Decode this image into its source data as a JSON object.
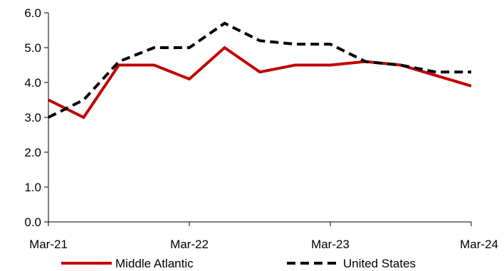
{
  "chart_data": {
    "type": "line",
    "title": "",
    "xlabel": "",
    "ylabel": "",
    "x": [
      "Mar-21",
      "Jun-21",
      "Sep-21",
      "Dec-21",
      "Mar-22",
      "Jun-22",
      "Sep-22",
      "Dec-22",
      "Mar-23",
      "Jun-23",
      "Sep-23",
      "Dec-23",
      "Mar-24"
    ],
    "x_tick_labels": [
      "Mar-21",
      "Mar-22",
      "Mar-23",
      "Mar-24"
    ],
    "y_tick_labels": [
      "0.0",
      "1.0",
      "2.0",
      "3.0",
      "4.0",
      "5.0",
      "6.0"
    ],
    "ylim": [
      0,
      6
    ],
    "grid": false,
    "legend_position": "bottom",
    "series": [
      {
        "name": "Middle Atlantic",
        "color": "#C00000",
        "style": "solid",
        "values": [
          3.5,
          3.0,
          4.5,
          4.5,
          4.1,
          5.0,
          4.3,
          4.5,
          4.5,
          4.6,
          4.5,
          4.2,
          3.9
        ]
      },
      {
        "name": "United States",
        "color": "#000000",
        "style": "dashed",
        "values": [
          3.0,
          3.5,
          4.6,
          5.0,
          5.0,
          5.7,
          5.2,
          5.1,
          5.1,
          4.6,
          4.5,
          4.3,
          4.3
        ]
      }
    ]
  }
}
